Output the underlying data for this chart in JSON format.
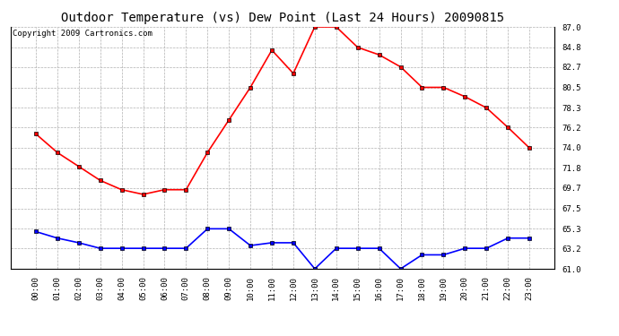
{
  "title": "Outdoor Temperature (vs) Dew Point (Last 24 Hours) 20090815",
  "copyright": "Copyright 2009 Cartronics.com",
  "x_labels": [
    "00:00",
    "01:00",
    "02:00",
    "03:00",
    "04:00",
    "05:00",
    "06:00",
    "07:00",
    "08:00",
    "09:00",
    "10:00",
    "11:00",
    "12:00",
    "13:00",
    "14:00",
    "15:00",
    "16:00",
    "17:00",
    "18:00",
    "19:00",
    "20:00",
    "21:00",
    "22:00",
    "23:00"
  ],
  "temp_data": [
    75.5,
    73.5,
    72.0,
    70.5,
    69.5,
    69.0,
    69.5,
    69.5,
    73.5,
    77.0,
    80.5,
    84.5,
    82.0,
    87.0,
    87.0,
    84.8,
    84.0,
    82.7,
    80.5,
    80.5,
    79.5,
    78.3,
    76.2,
    74.0
  ],
  "dew_data": [
    65.0,
    64.3,
    63.8,
    63.2,
    63.2,
    63.2,
    63.2,
    63.2,
    65.3,
    65.3,
    63.5,
    63.8,
    63.8,
    61.0,
    63.2,
    63.2,
    63.2,
    61.0,
    62.5,
    62.5,
    63.2,
    63.2,
    64.3,
    64.3
  ],
  "temp_color": "#ff0000",
  "dew_color": "#0000ff",
  "bg_color": "#ffffff",
  "plot_bg_color": "#ffffff",
  "grid_color": "#b0b0b0",
  "title_color": "#000000",
  "ylim": [
    61.0,
    87.0
  ],
  "yticks": [
    61.0,
    63.2,
    65.3,
    67.5,
    69.7,
    71.8,
    74.0,
    76.2,
    78.3,
    80.5,
    82.7,
    84.8,
    87.0
  ],
  "title_fontsize": 10,
  "copyright_fontsize": 6.5,
  "tick_fontsize": 6.5,
  "line_width": 1.2,
  "marker": "s",
  "marker_size": 2.5
}
